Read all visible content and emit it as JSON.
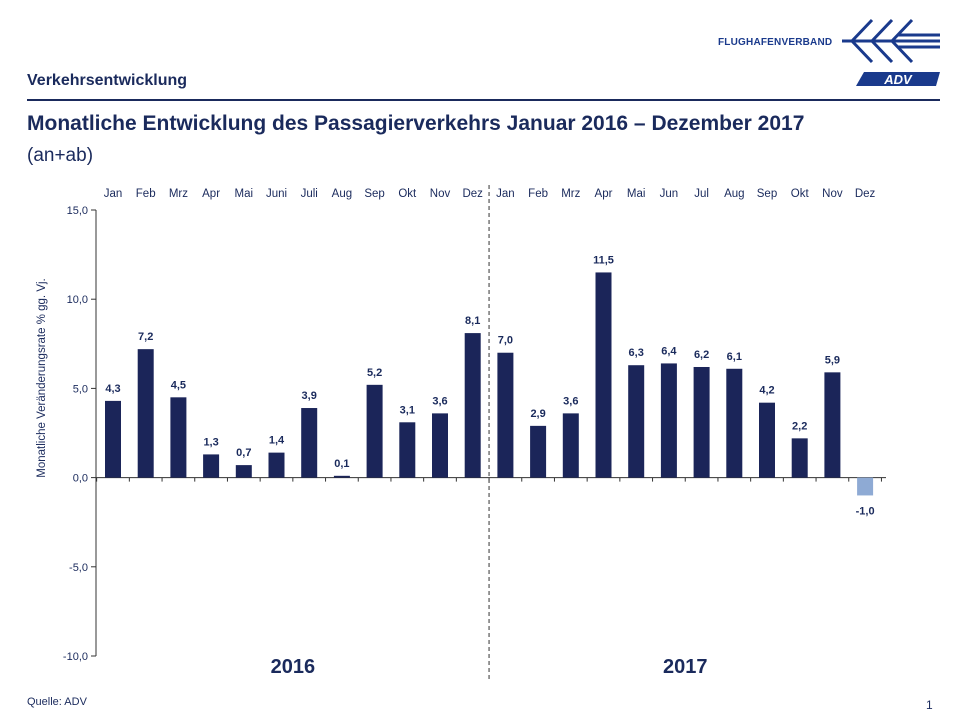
{
  "header": {
    "section": "Verkehrsentwicklung",
    "title": "Monatliche Entwicklung des Passagierverkehrs  Januar 2016 – Dezember 2017",
    "subtitle": "(an+ab)"
  },
  "logo": {
    "text": "FLUGHAFENVERBAND",
    "brand": "ADV",
    "icon": "adv-logo-arrows-icon",
    "color": "#1a3a8c"
  },
  "footer": {
    "source": "Quelle: ADV",
    "page": "1"
  },
  "colors": {
    "bar_positive": "#1b2559",
    "bar_negative": "#8eaad4",
    "text": "#1a2a5c"
  },
  "chart_data": {
    "type": "bar",
    "ylabel": "Monatliche Veränderungsrate % gg. Vj.",
    "ylim": [
      -10,
      15
    ],
    "yticks": [
      "15,0",
      "10,0",
      "5,0",
      "0,0",
      "-5,0",
      "-10,0"
    ],
    "ytick_values": [
      15,
      10,
      5,
      0,
      -5,
      -10
    ],
    "categories": [
      "Jan",
      "Feb",
      "Mrz",
      "Apr",
      "Mai",
      "Juni",
      "Juli",
      "Aug",
      "Sep",
      "Okt",
      "Nov",
      "Dez",
      "Jan",
      "Feb",
      "Mrz",
      "Apr",
      "Mai",
      "Jun",
      "Jul",
      "Aug",
      "Sep",
      "Okt",
      "Nov",
      "Dez"
    ],
    "values": [
      4.3,
      7.2,
      4.5,
      1.3,
      0.7,
      1.4,
      3.9,
      0.1,
      5.2,
      3.1,
      3.6,
      8.1,
      7.0,
      2.9,
      3.6,
      11.5,
      6.3,
      6.4,
      6.2,
      6.1,
      4.2,
      2.2,
      5.9,
      -1.0
    ],
    "value_labels": [
      "4,3",
      "7,2",
      "4,5",
      "1,3",
      "0,7",
      "1,4",
      "3,9",
      "0,1",
      "5,2",
      "3,1",
      "3,6",
      "8,1",
      "7,0",
      "2,9",
      "3,6",
      "11,5",
      "6,3",
      "6,4",
      "6,2",
      "6,1",
      "4,2",
      "2,2",
      "5,9",
      "-1,0"
    ],
    "groups": [
      {
        "label": "2016",
        "start": 0,
        "end": 11
      },
      {
        "label": "2017",
        "start": 12,
        "end": 23
      }
    ],
    "grid": false,
    "separator": "dashed line between Dez 2016 and Jan 2017"
  }
}
